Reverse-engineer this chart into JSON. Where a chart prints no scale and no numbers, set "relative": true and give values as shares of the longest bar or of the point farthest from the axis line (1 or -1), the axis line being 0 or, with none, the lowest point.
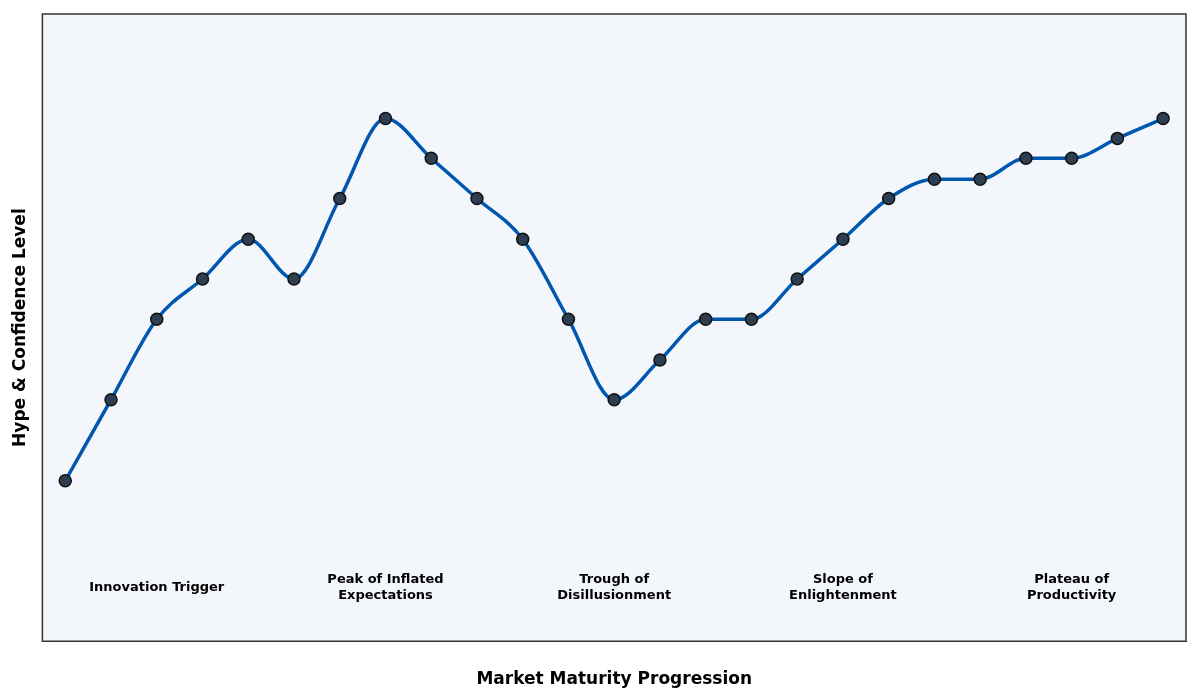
{
  "chart_data": {
    "type": "line",
    "relative": true,
    "xlabel": "Market Maturity Progression",
    "ylabel": "Hype & Confidence Level",
    "categories": [
      null,
      null,
      null,
      null,
      null,
      null,
      null,
      null,
      null,
      null,
      null,
      null,
      null,
      null,
      null,
      null,
      null,
      null,
      null,
      null,
      null,
      null,
      null,
      null,
      null
    ],
    "series": [
      {
        "color": "#0057b0",
        "values": [
          0.307,
          0.462,
          0.616,
          0.693,
          0.769,
          0.693,
          0.847,
          1,
          0.924,
          0.847,
          0.769,
          0.616,
          0.462,
          0.538,
          0.616,
          0.616,
          0.693,
          0.769,
          0.847,
          0.884,
          0.884,
          0.924,
          0.924,
          0.962,
          1
        ]
      }
    ],
    "marker": "circle",
    "line_style": "solid",
    "grid": false,
    "legend": false,
    "annotations": [
      "Innovation Trigger",
      "Peak of Inflated\nExpectations",
      "Trough of\nDisillusionment",
      "Slope of\nEnlightenment",
      "Plateau of\nProductivity"
    ]
  }
}
